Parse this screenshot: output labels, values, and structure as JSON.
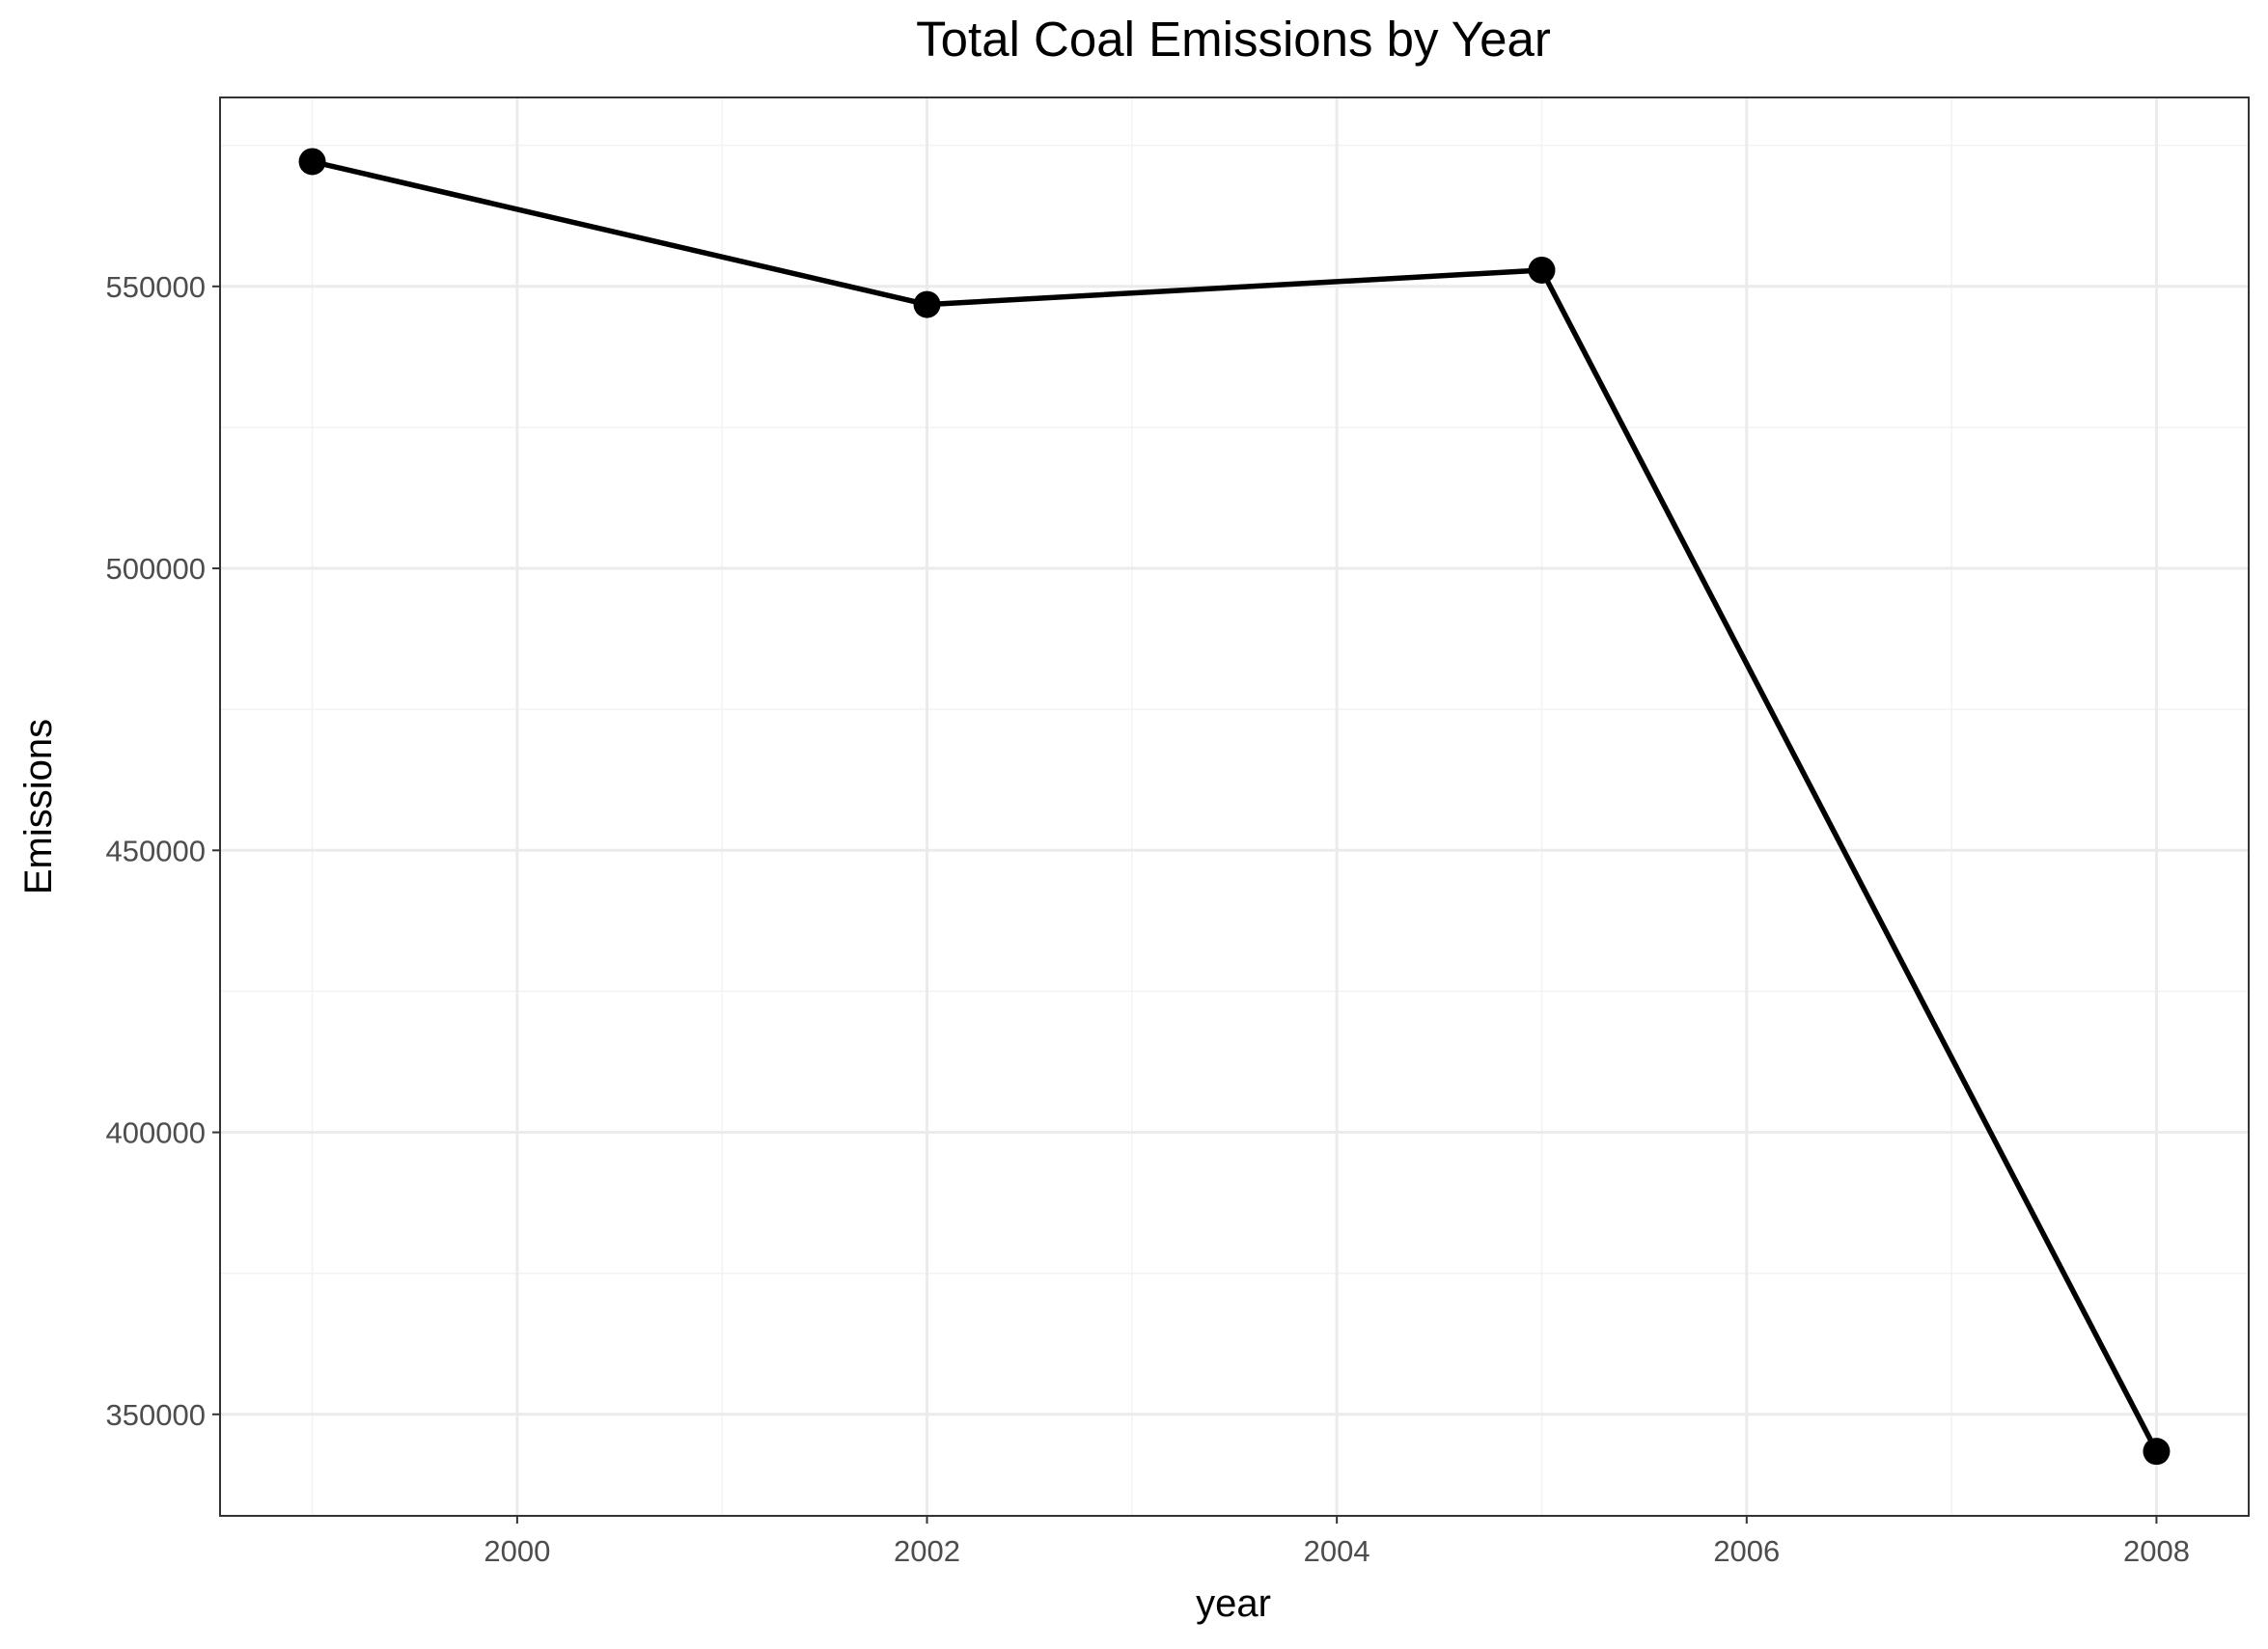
{
  "chart_data": {
    "type": "line",
    "title": "Total Coal Emissions by Year",
    "xlabel": "year",
    "ylabel": "Emissions",
    "x": [
      1999,
      2002,
      2005,
      2008
    ],
    "series": [
      {
        "values": [
          572126,
          546789,
          552881,
          343432
        ]
      }
    ],
    "xlim": [
      1998.55,
      2008.45
    ],
    "ylim": [
      332000,
      583500
    ],
    "x_ticks": [
      2000,
      2002,
      2004,
      2006,
      2008
    ],
    "x_tick_labels": [
      "2000",
      "2002",
      "2004",
      "2006",
      "2008"
    ],
    "x_minor_ticks": [
      1999,
      2001,
      2003,
      2005,
      2007
    ],
    "y_ticks": [
      350000,
      400000,
      450000,
      500000,
      550000
    ],
    "y_tick_labels": [
      "350000",
      "400000",
      "450000",
      "500000",
      "550000"
    ],
    "y_minor_ticks": [
      375000,
      425000,
      475000,
      525000,
      575000
    ],
    "grid": true,
    "legend": "none",
    "colors": {
      "line": "#000000",
      "point": "#000000",
      "grid_major": "#ebebeb",
      "grid_minor": "#f2f2f2",
      "border": "#333333",
      "tick_label": "#4d4d4d"
    }
  }
}
